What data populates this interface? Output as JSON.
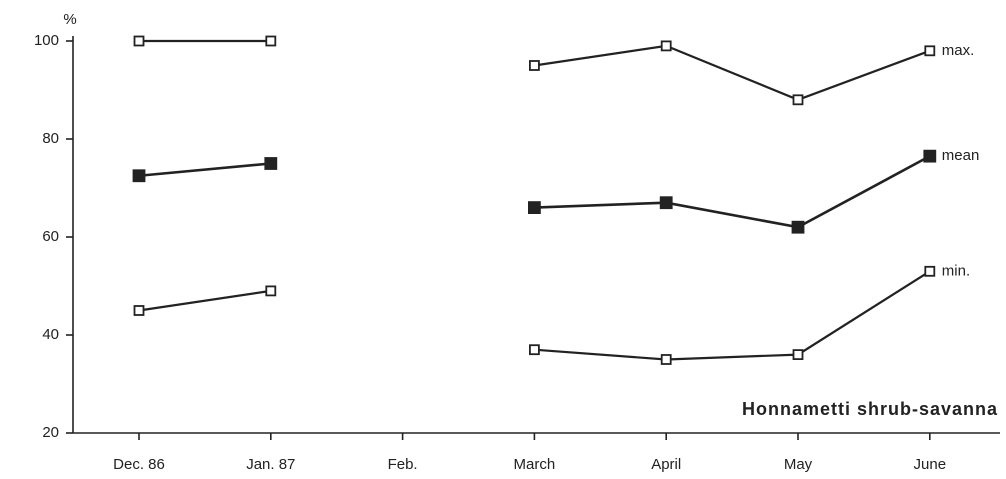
{
  "chart_data": {
    "type": "line",
    "y_label": "%",
    "annotation": "Honnametti  shrub-savanna",
    "categories": [
      "Dec. 86",
      "Jan. 87",
      "Feb.",
      "March",
      "April",
      "May",
      "June"
    ],
    "series": [
      {
        "name": "max.",
        "color": "#222222",
        "marker": "open",
        "values": [
          100,
          100,
          null,
          95,
          99,
          88,
          98
        ]
      },
      {
        "name": "mean",
        "color": "#222222",
        "marker": "filled",
        "values": [
          72.5,
          75,
          null,
          66,
          67,
          62,
          76.5
        ]
      },
      {
        "name": "min.",
        "color": "#222222",
        "marker": "open",
        "values": [
          45,
          49,
          null,
          37,
          35,
          36,
          53
        ]
      }
    ],
    "ylim": [
      20,
      100
    ],
    "yticks": [
      20,
      40,
      60,
      80,
      100
    ],
    "grid": false
  }
}
